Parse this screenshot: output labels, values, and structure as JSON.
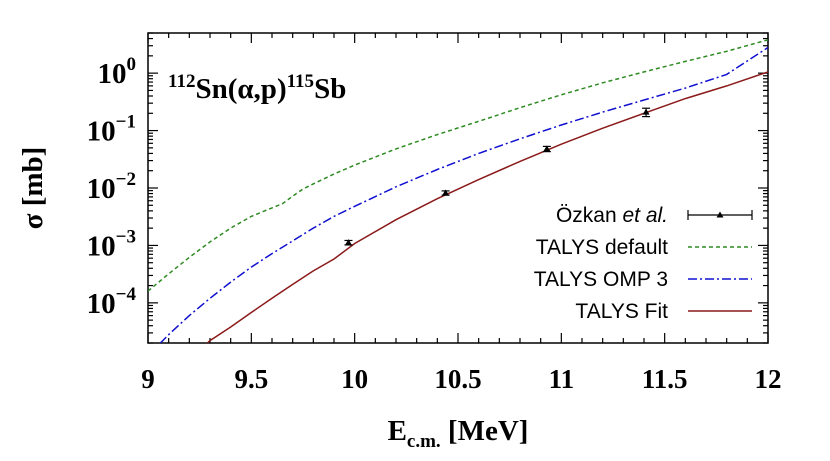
{
  "chart_data": {
    "type": "line",
    "title_parts": {
      "target_mass": "112",
      "target": "Sn",
      "reaction": "(α,p)",
      "product_mass": "115",
      "product": "Sb"
    },
    "xlabel_main": "E",
    "xlabel_sub": "c.m.",
    "xlabel_unit": " [MeV]",
    "ylabel": "σ [mb]",
    "xlim": [
      9,
      12
    ],
    "ylim": [
      2e-05,
      5
    ],
    "yscale": "log",
    "x_ticks": [
      {
        "value": 9,
        "label": "9"
      },
      {
        "value": 9.5,
        "label": "9.5"
      },
      {
        "value": 10,
        "label": "10"
      },
      {
        "value": 10.5,
        "label": "10.5"
      },
      {
        "value": 11,
        "label": "11"
      },
      {
        "value": 11.5,
        "label": "11.5"
      },
      {
        "value": 12,
        "label": "12"
      }
    ],
    "y_ticks": [
      {
        "value": 1,
        "mantissa": "10",
        "exponent": "0"
      },
      {
        "value": 0.1,
        "mantissa": "10",
        "exponent": "−1"
      },
      {
        "value": 0.01,
        "mantissa": "10",
        "exponent": "−2"
      },
      {
        "value": 0.001,
        "mantissa": "10",
        "exponent": "−3"
      },
      {
        "value": 0.0001,
        "mantissa": "10",
        "exponent": "−4"
      }
    ],
    "grid": false,
    "legend_position": "bottom-right",
    "legend": [
      {
        "series_index": 0,
        "label_main": "Özkan ",
        "label_italic": "et al."
      },
      {
        "series_index": 1,
        "label_main": "TALYS default",
        "label_italic": ""
      },
      {
        "series_index": 2,
        "label_main": "TALYS OMP 3",
        "label_italic": ""
      },
      {
        "series_index": 3,
        "label_main": "TALYS Fit",
        "label_italic": ""
      }
    ],
    "series": [
      {
        "name": "Özkan et al.",
        "kind": "points",
        "color": "#000000",
        "x": [
          9.97,
          10.44,
          10.93,
          11.41
        ],
        "y": [
          0.00112,
          0.0082,
          0.048,
          0.21
        ],
        "yerr_low": [
          0.0001,
          0.0007,
          0.005,
          0.035
        ],
        "yerr_high": [
          0.0001,
          0.0007,
          0.005,
          0.035
        ]
      },
      {
        "name": "TALYS default",
        "kind": "line",
        "style": "dashed",
        "color": "#2e8b22",
        "x": [
          9.0,
          9.1,
          9.2,
          9.3,
          9.4,
          9.5,
          9.6,
          9.65,
          9.7,
          9.75,
          9.8,
          9.9,
          10.0,
          10.2,
          10.4,
          10.6,
          10.8,
          11.0,
          11.2,
          11.4,
          11.6,
          11.8,
          12.0
        ],
        "y": [
          0.00016,
          0.00032,
          0.00062,
          0.00115,
          0.002,
          0.0032,
          0.0045,
          0.0053,
          0.0072,
          0.0096,
          0.0118,
          0.0175,
          0.025,
          0.048,
          0.085,
          0.145,
          0.25,
          0.42,
          0.68,
          1.05,
          1.6,
          2.4,
          3.8
        ]
      },
      {
        "name": "TALYS OMP 3",
        "kind": "line",
        "style": "dashdot",
        "color": "#1010d0",
        "x": [
          9.0,
          9.1,
          9.2,
          9.3,
          9.4,
          9.5,
          9.6,
          9.7,
          9.8,
          9.9,
          10.0,
          10.2,
          10.4,
          10.6,
          10.8,
          11.0,
          11.2,
          11.4,
          11.6,
          11.8,
          12.0
        ],
        "y": [
          1.2e-05,
          2.8e-05,
          6e-05,
          0.00012,
          0.00023,
          0.00042,
          0.00072,
          0.0012,
          0.002,
          0.0032,
          0.0048,
          0.0105,
          0.021,
          0.04,
          0.072,
          0.125,
          0.21,
          0.34,
          0.55,
          0.95,
          2.8
        ]
      },
      {
        "name": "TALYS Fit",
        "kind": "line",
        "style": "solid",
        "color": "#8b1a1a",
        "x": [
          9.25,
          9.3,
          9.4,
          9.5,
          9.6,
          9.7,
          9.8,
          9.9,
          10.0,
          10.2,
          10.4,
          10.6,
          10.8,
          11.0,
          11.2,
          11.4,
          11.6,
          11.8,
          12.0
        ],
        "y": [
          1.5e-05,
          2.2e-05,
          3.8e-05,
          6.8e-05,
          0.00012,
          0.00021,
          0.00036,
          0.00058,
          0.00108,
          0.0028,
          0.0065,
          0.014,
          0.029,
          0.058,
          0.11,
          0.2,
          0.36,
          0.6,
          1.05
        ]
      }
    ]
  }
}
